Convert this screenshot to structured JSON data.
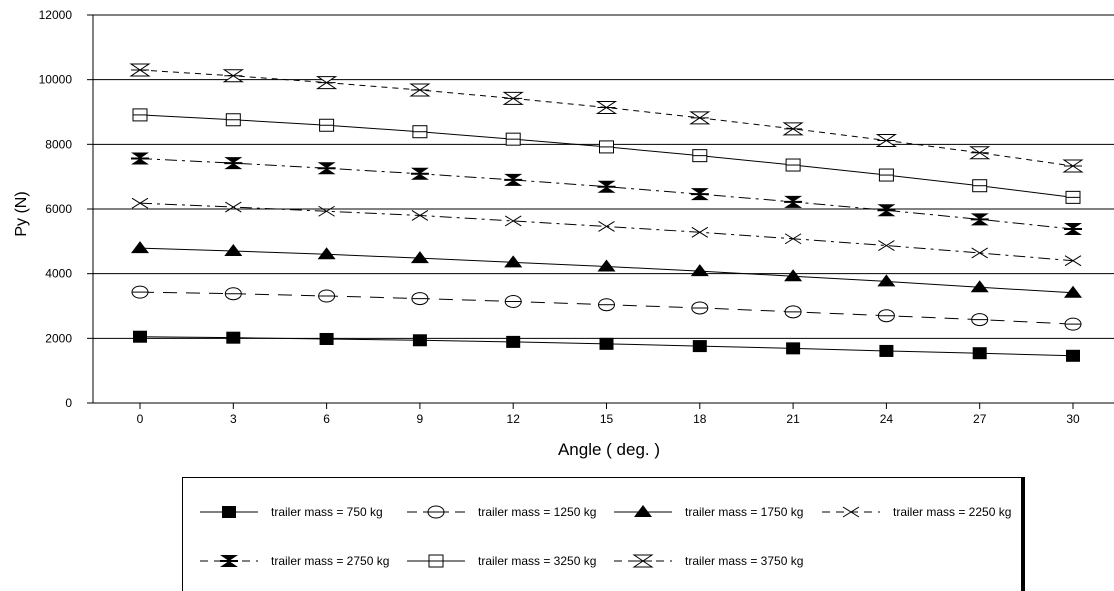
{
  "chart_data": {
    "type": "line",
    "xlabel": "Angle ( deg. )",
    "ylabel": "Py (N)",
    "x": [
      0,
      3,
      6,
      9,
      12,
      15,
      18,
      21,
      24,
      27,
      30
    ],
    "x_ticks": [
      "0",
      "3",
      "6",
      "9",
      "12",
      "15",
      "18",
      "21",
      "24",
      "27",
      "30"
    ],
    "y_ticks": [
      "0",
      "2000",
      "4000",
      "6000",
      "8000",
      "10000",
      "12000"
    ],
    "ylim": [
      0,
      12000
    ],
    "grid": "horizontal",
    "legend_position": "bottom",
    "series": [
      {
        "name": "trailer mass = 750 kg",
        "marker": "filled-square",
        "line": "solid",
        "values": [
          2050,
          2020,
          1980,
          1940,
          1890,
          1830,
          1760,
          1690,
          1610,
          1540,
          1460
        ]
      },
      {
        "name": "trailer mass = 1250 kg",
        "marker": "open-circle",
        "line": "long-dash",
        "values": [
          3430,
          3380,
          3310,
          3230,
          3140,
          3040,
          2940,
          2820,
          2700,
          2580,
          2440
        ]
      },
      {
        "name": "trailer mass = 1750 kg",
        "marker": "filled-triangle",
        "line": "solid",
        "values": [
          4790,
          4700,
          4600,
          4480,
          4350,
          4220,
          4080,
          3920,
          3760,
          3580,
          3410
        ]
      },
      {
        "name": "trailer mass = 2250 kg",
        "marker": "x-mark",
        "line": "dash-dot",
        "values": [
          6180,
          6060,
          5930,
          5800,
          5630,
          5460,
          5280,
          5080,
          4870,
          4640,
          4400
        ]
      },
      {
        "name": "trailer mass = 2750 kg",
        "marker": "filled-bowtie",
        "line": "dash-dot",
        "values": [
          7560,
          7420,
          7260,
          7090,
          6900,
          6690,
          6460,
          6220,
          5960,
          5680,
          5380
        ]
      },
      {
        "name": "trailer mass = 3250 kg",
        "marker": "open-square",
        "line": "solid",
        "values": [
          8910,
          8760,
          8590,
          8390,
          8160,
          7920,
          7650,
          7360,
          7050,
          6720,
          6360
        ]
      },
      {
        "name": "trailer mass = 3750 kg",
        "marker": "open-bowtie",
        "line": "short-dash",
        "values": [
          10300,
          10120,
          9910,
          9680,
          9420,
          9140,
          8820,
          8480,
          8120,
          7740,
          7330
        ]
      }
    ]
  }
}
